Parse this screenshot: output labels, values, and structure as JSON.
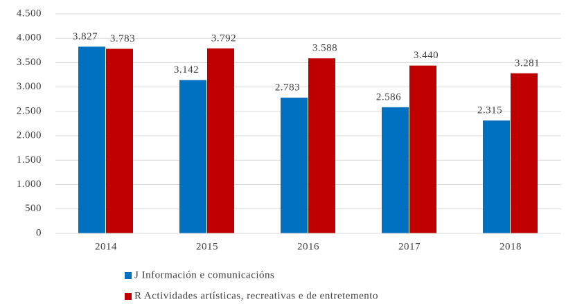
{
  "chart_data": {
    "type": "bar",
    "categories": [
      "2014",
      "2015",
      "2016",
      "2017",
      "2018"
    ],
    "series": [
      {
        "name": "J Información e comunicacións",
        "color": "#0070c0",
        "values": [
          3827,
          3142,
          2783,
          2586,
          2315
        ],
        "value_labels": [
          "3.827",
          "3.142",
          "2.783",
          "2.586",
          "2.315"
        ]
      },
      {
        "name": "R Actividades artísticas, recreativas e de entretemento",
        "color": "#c00000",
        "values": [
          3783,
          3792,
          3588,
          3440,
          3281
        ],
        "value_labels": [
          "3.783",
          "3.792",
          "3.588",
          "3.440",
          "3.281"
        ]
      }
    ],
    "ylim": [
      0,
      4500
    ],
    "yticks": [
      0,
      500,
      {
        "value": 1000,
        "label": "1.000"
      },
      {
        "value": 1500,
        "label": "1.500"
      },
      {
        "value": 2000,
        "label": "2.000"
      },
      {
        "value": 2500,
        "label": "2.500"
      },
      {
        "value": 3000,
        "label": "3.000"
      },
      {
        "value": 3500,
        "label": "3.500"
      },
      {
        "value": 4000,
        "label": "4.000"
      },
      {
        "value": 4500,
        "label": "4.500"
      }
    ],
    "grid": true,
    "legend": "bottom"
  }
}
